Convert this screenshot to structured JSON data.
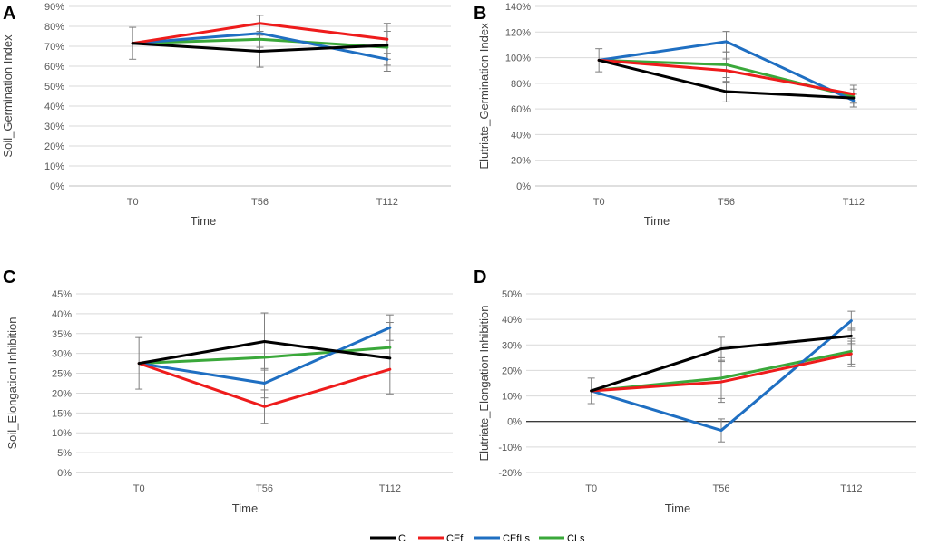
{
  "legend": [
    {
      "name": "C",
      "color": "#000000"
    },
    {
      "name": "CEf",
      "color": "#ee1c1c"
    },
    {
      "name": "CEfLs",
      "color": "#1f6fc2"
    },
    {
      "name": "CLs",
      "color": "#3aa83a"
    }
  ],
  "chart_data": [
    {
      "type": "line",
      "panel": "A",
      "categories": [
        "T0",
        "T56",
        "T112"
      ],
      "xlabel": "Time",
      "ylabel": "Soil_Germination Index",
      "ylim": [
        0,
        90
      ],
      "ytick_step": 10,
      "ytick_labels": [
        "0%",
        "10%",
        "20%",
        "30%",
        "40%",
        "50%",
        "60%",
        "70%",
        "80%",
        "90%"
      ],
      "zero_line": false,
      "series": [
        {
          "name": "C",
          "color": "#000000",
          "values": [
            71.5,
            67.5,
            70.5
          ],
          "errors": [
            8,
            8,
            7
          ]
        },
        {
          "name": "CEf",
          "color": "#ee1c1c",
          "values": [
            71.5,
            81.5,
            73.5
          ],
          "errors": [
            0,
            4,
            0
          ]
        },
        {
          "name": "CEfLs",
          "color": "#1f6fc2",
          "values": [
            71.5,
            76.5,
            63.5
          ],
          "errors": [
            0,
            0,
            3
          ]
        },
        {
          "name": "CLs",
          "color": "#3aa83a",
          "values": [
            71.5,
            73.5,
            69.5
          ],
          "errors": [
            0,
            4,
            12
          ]
        }
      ]
    },
    {
      "type": "line",
      "panel": "B",
      "categories": [
        "T0",
        "T56",
        "T112"
      ],
      "xlabel": "Time",
      "ylabel": "Elutriate_Germination Index",
      "ylim": [
        0,
        140
      ],
      "ytick_step": 20,
      "ytick_labels": [
        "0%",
        "20%",
        "40%",
        "60%",
        "80%",
        "100%",
        "120%",
        "140%"
      ],
      "zero_line": false,
      "series": [
        {
          "name": "C",
          "color": "#000000",
          "values": [
            98,
            73.5,
            68.5
          ],
          "errors": [
            9,
            8,
            7
          ]
        },
        {
          "name": "CEf",
          "color": "#ee1c1c",
          "values": [
            98,
            90,
            71.5
          ],
          "errors": [
            0,
            9,
            7
          ]
        },
        {
          "name": "CEfLs",
          "color": "#1f6fc2",
          "values": [
            98,
            112.5,
            66.5
          ],
          "errors": [
            0,
            8,
            5
          ]
        },
        {
          "name": "CLs",
          "color": "#3aa83a",
          "values": [
            98,
            94.5,
            69.5
          ],
          "errors": [
            0,
            10,
            0
          ]
        }
      ]
    },
    {
      "type": "line",
      "panel": "C",
      "categories": [
        "T0",
        "T56",
        "T112"
      ],
      "xlabel": "Time",
      "ylabel": "Soil_Elongation Inhibition",
      "ylim": [
        0,
        45
      ],
      "ytick_step": 5,
      "ytick_labels": [
        "0%",
        "5%",
        "10%",
        "15%",
        "20%",
        "25%",
        "30%",
        "35%",
        "40%",
        "45%"
      ],
      "zero_line": false,
      "series": [
        {
          "name": "C",
          "color": "#000000",
          "values": [
            27.5,
            33,
            28.8
          ],
          "errors": [
            6.5,
            7.2,
            9
          ]
        },
        {
          "name": "CEf",
          "color": "#ee1c1c",
          "values": [
            27.5,
            16.6,
            26
          ],
          "errors": [
            0,
            4.2,
            0
          ]
        },
        {
          "name": "CEfLs",
          "color": "#1f6fc2",
          "values": [
            27.5,
            22.5,
            36.5
          ],
          "errors": [
            0,
            3.7,
            3.2
          ]
        },
        {
          "name": "CLs",
          "color": "#3aa83a",
          "values": [
            27.5,
            29,
            31.5
          ],
          "errors": [
            0,
            0,
            0
          ]
        }
      ]
    },
    {
      "type": "line",
      "panel": "D",
      "categories": [
        "T0",
        "T56",
        "T112"
      ],
      "xlabel": "Time",
      "ylabel": "Elutriate_Elongation Inhibition",
      "ylim": [
        -20,
        50
      ],
      "ytick_step": 10,
      "ytick_labels": [
        "-20%",
        "-10%",
        "0%",
        "10%",
        "20%",
        "30%",
        "40%",
        "50%"
      ],
      "zero_line": true,
      "series": [
        {
          "name": "C",
          "color": "#000000",
          "values": [
            12,
            28.5,
            33.5
          ],
          "errors": [
            5,
            4.5,
            3
          ]
        },
        {
          "name": "CEf",
          "color": "#ee1c1c",
          "values": [
            12,
            15.5,
            26.5
          ],
          "errors": [
            0,
            8,
            5
          ]
        },
        {
          "name": "CEfLs",
          "color": "#1f6fc2",
          "values": [
            12,
            -3.5,
            39.5
          ],
          "errors": [
            0,
            4.5,
            3.7
          ]
        },
        {
          "name": "CLs",
          "color": "#3aa83a",
          "values": [
            12,
            17,
            27.5
          ],
          "errors": [
            0,
            8,
            5
          ]
        }
      ]
    }
  ]
}
